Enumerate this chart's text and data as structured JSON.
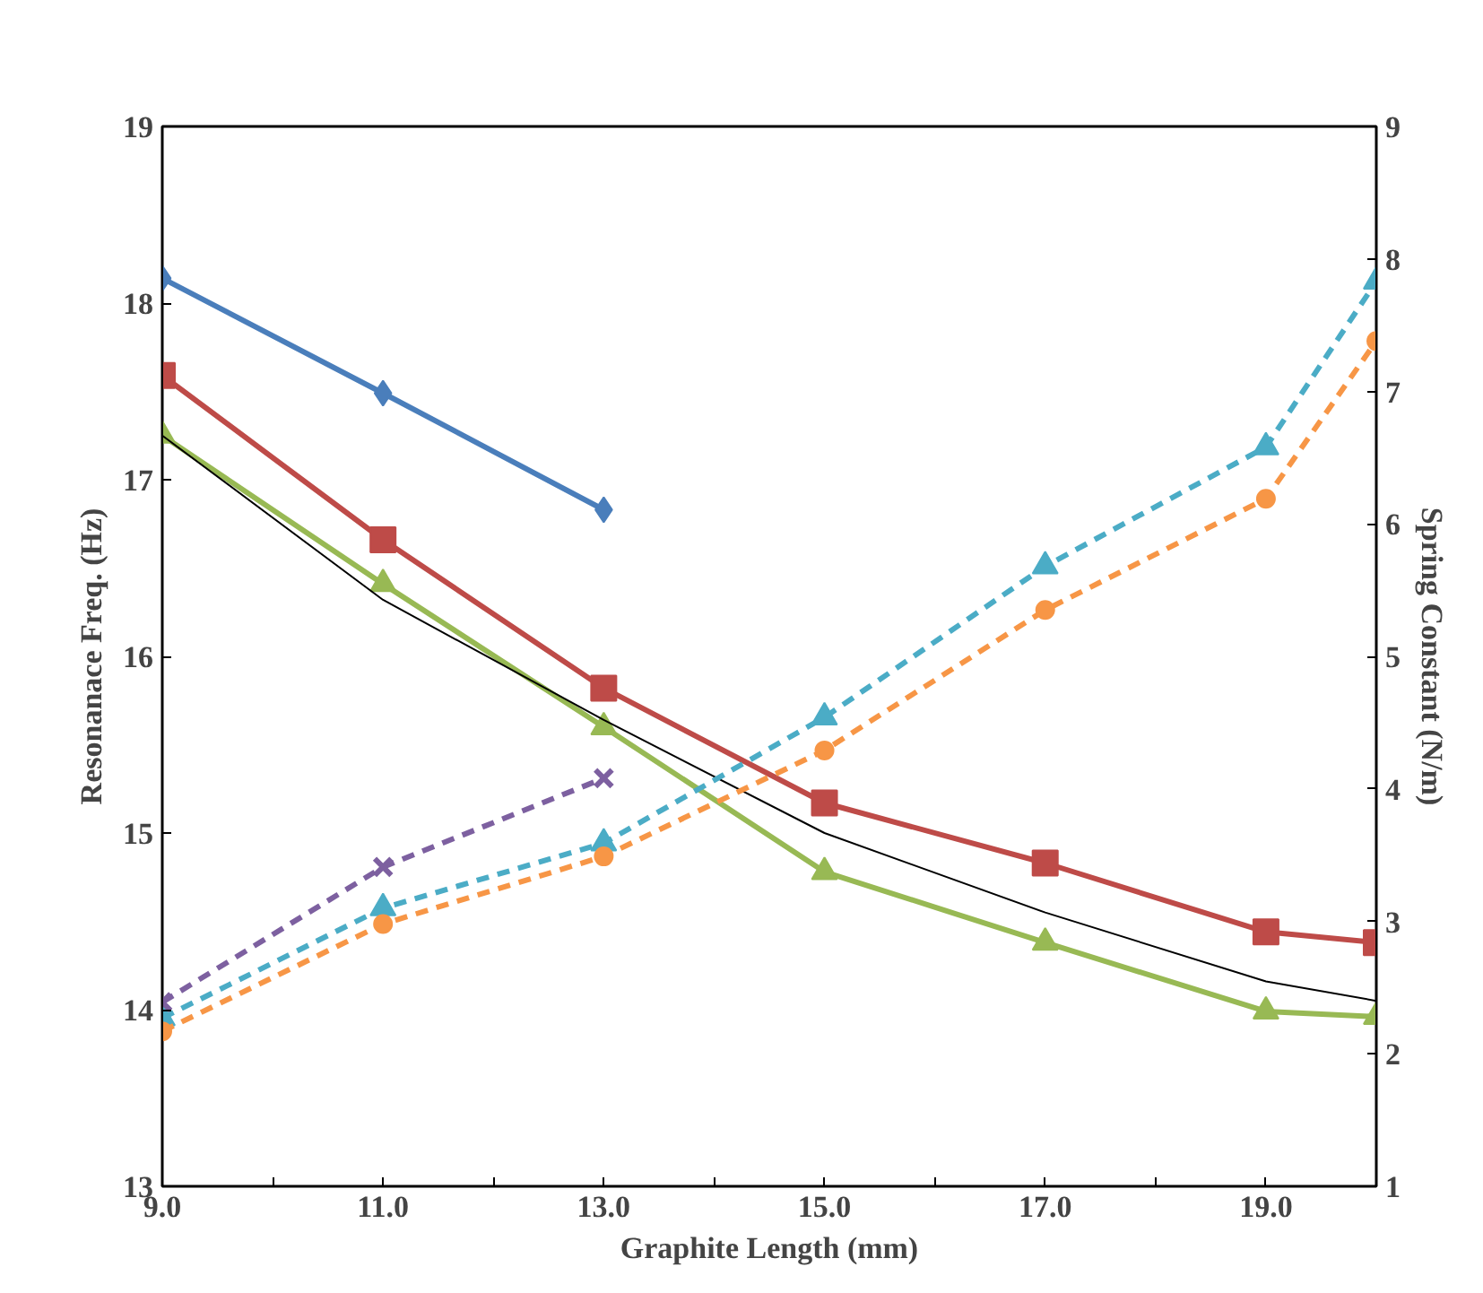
{
  "chart_data": {
    "type": "line",
    "xlabel": "Graphite Length (mm)",
    "ylabel": "Resonanace Freq. (Hz)",
    "y2label": "Spring Constant (N/m)",
    "xlim": [
      9,
      20
    ],
    "ylim": [
      13,
      19
    ],
    "y2lim": [
      1,
      9
    ],
    "xticks": [
      {
        "value": 9,
        "label": "9.0"
      },
      {
        "value": 10,
        "label": null
      },
      {
        "value": 11,
        "label": "11.0"
      },
      {
        "value": 12,
        "label": null
      },
      {
        "value": 13,
        "label": "13.0"
      },
      {
        "value": 14,
        "label": null
      },
      {
        "value": 15,
        "label": "15.0"
      },
      {
        "value": 16,
        "label": null
      },
      {
        "value": 17,
        "label": "17.0"
      },
      {
        "value": 18,
        "label": null
      },
      {
        "value": 19,
        "label": "19.0"
      },
      {
        "value": 20,
        "label": null
      }
    ],
    "yticks": [
      13,
      14,
      15,
      16,
      17,
      18,
      19
    ],
    "y2ticks": [
      1,
      2,
      3,
      4,
      5,
      6,
      7,
      8,
      9
    ],
    "grid": false,
    "series": [
      {
        "color": "#4a7ebb",
        "marker": "diamond",
        "line_style": "solid",
        "x": [
          9,
          11,
          13
        ],
        "values": [
          18.14,
          17.49,
          16.83
        ]
      },
      {
        "color": "#be4b48",
        "marker": "square",
        "line_style": "solid",
        "x": [
          9,
          11,
          13,
          15,
          17,
          19,
          20
        ],
        "values": [
          17.59,
          16.66,
          15.82,
          15.17,
          14.83,
          14.44,
          14.38
        ]
      },
      {
        "color": "#98b954",
        "marker": "triangle",
        "line_style": "solid",
        "x": [
          9,
          11,
          13,
          15,
          17,
          19,
          20
        ],
        "values": [
          17.25,
          16.41,
          15.6,
          14.78,
          14.38,
          13.99,
          13.96
        ]
      },
      {
        "color": "#000000",
        "marker": "none",
        "line_style": "solid",
        "x": [
          9,
          11,
          13,
          15,
          17,
          19,
          20
        ],
        "values": [
          17.25,
          16.32,
          15.64,
          15.0,
          14.55,
          14.16,
          14.05
        ]
      },
      {
        "color": "#7d60a0",
        "marker": "cross",
        "line_style": "dashed",
        "axis": "y2",
        "x": [
          9,
          11,
          13
        ],
        "values": [
          2.39,
          3.41,
          4.08
        ]
      },
      {
        "color": "#4bacc6",
        "marker": "triangle",
        "line_style": "dashed",
        "axis": "y2",
        "x": [
          9,
          11,
          13,
          15,
          17,
          19,
          20
        ],
        "values": [
          2.27,
          3.1,
          3.59,
          4.54,
          5.68,
          6.58,
          7.83
        ]
      },
      {
        "color": "#f79646",
        "marker": "circle",
        "line_style": "dashed",
        "axis": "y2",
        "x": [
          9,
          11,
          13,
          15,
          17,
          19,
          20
        ],
        "values": [
          2.17,
          2.98,
          3.49,
          4.29,
          5.35,
          6.19,
          7.38
        ]
      }
    ]
  }
}
